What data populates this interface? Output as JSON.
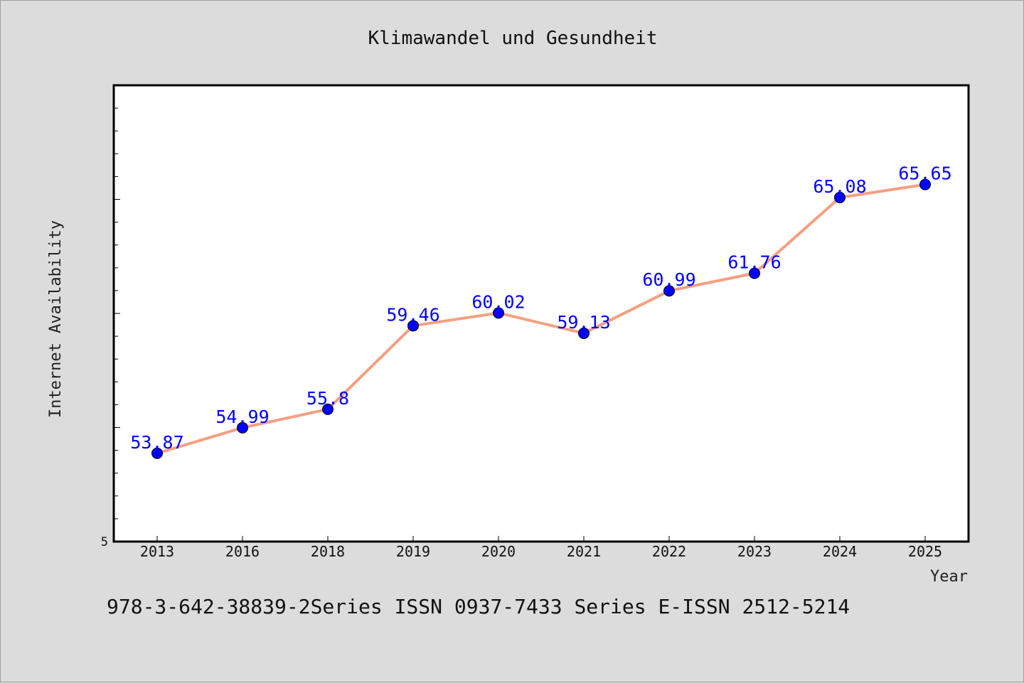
{
  "footer": "978-3-642-38839-2Series ISSN 0937-7433 Series E-ISSN 2512-5214",
  "colors": {
    "background": "#dcdcdc",
    "plot_background": "#ffffff",
    "line": "#f4a081",
    "marker": "#0000ff",
    "data_label": "#0000ff"
  },
  "chart_data": {
    "type": "line",
    "title": "Klimawandel und Gesundheit",
    "xlabel": "Year",
    "ylabel": "Internet Availability",
    "categories": [
      "2013",
      "2016",
      "2018",
      "2019",
      "2020",
      "2021",
      "2022",
      "2023",
      "2024",
      "2025"
    ],
    "series": [
      {
        "values": [
          53.87,
          54.99,
          55.8,
          59.46,
          60.02,
          59.13,
          60.99,
          61.76,
          65.08,
          65.65
        ],
        "labels": [
          "53.87",
          "54.99",
          "55.8",
          "59.46",
          "60.02",
          "59.13",
          "60.99",
          "61.76",
          "65.08",
          "65.65"
        ]
      }
    ],
    "y_tick_labels": [
      "5"
    ],
    "ylim": [
      50,
      70
    ],
    "y_minor_step": 1,
    "y_major_step": 5,
    "grid": false,
    "legend": "none"
  }
}
